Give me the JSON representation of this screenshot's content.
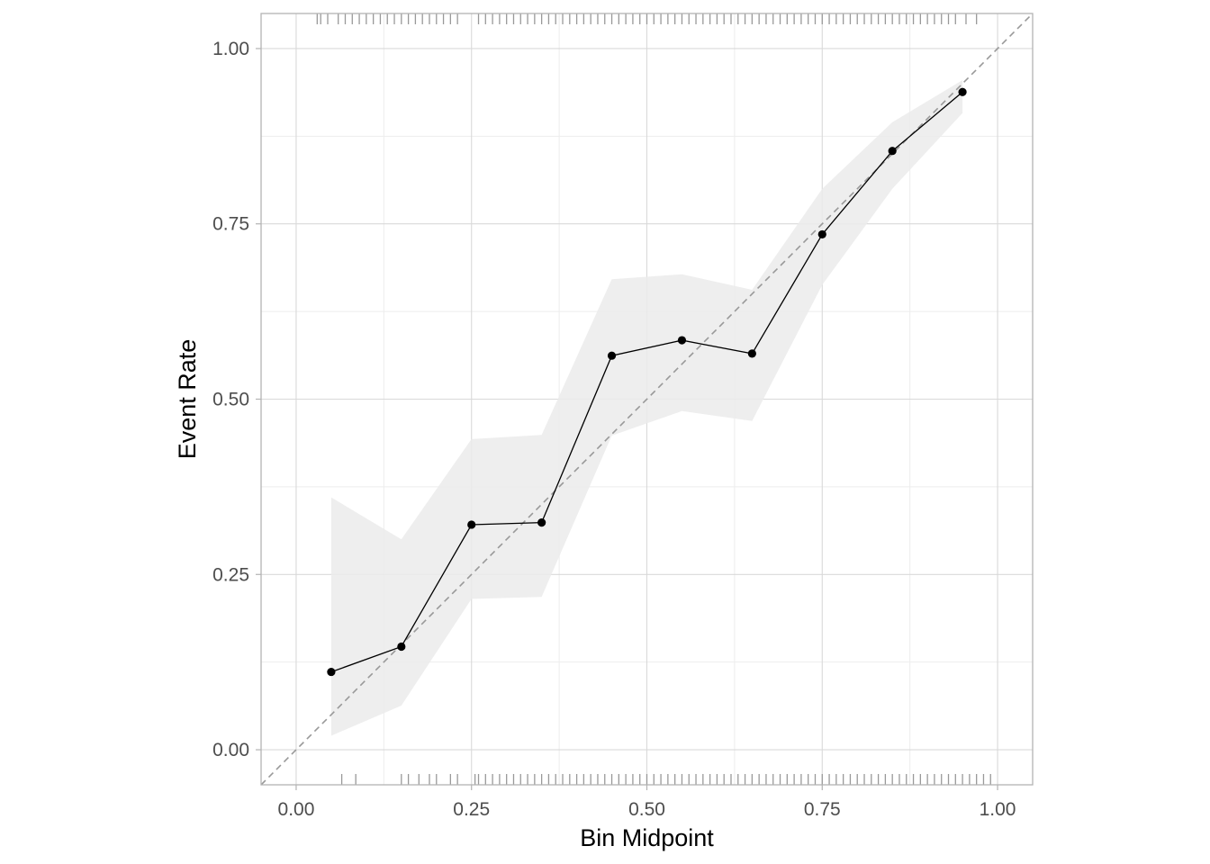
{
  "chart_data": {
    "type": "line",
    "title": "",
    "xlabel": "Bin Midpoint",
    "ylabel": "Event Rate",
    "xlim": [
      -0.05,
      1.05
    ],
    "ylim": [
      -0.05,
      1.05
    ],
    "x_ticks": [
      0,
      0.25,
      0.5,
      0.75,
      1
    ],
    "x_tick_labels": [
      "0.00",
      "0.25",
      "0.50",
      "0.75",
      "1.00"
    ],
    "y_ticks": [
      0,
      0.25,
      0.5,
      0.75,
      1
    ],
    "y_tick_labels": [
      "0.00",
      "0.25",
      "0.50",
      "0.75",
      "1.00"
    ],
    "grid": true,
    "legend": "none",
    "reference_line": {
      "x": [
        -0.05,
        1.05
      ],
      "y": [
        -0.05,
        1.05
      ],
      "style": "dashed",
      "color": "#999999"
    },
    "series": [
      {
        "x": [
          0.05,
          0.15,
          0.25,
          0.35,
          0.45,
          0.55,
          0.65,
          0.75,
          0.85,
          0.95
        ],
        "values": [
          0.111,
          0.147,
          0.321,
          0.324,
          0.562,
          0.584,
          0.565,
          0.735,
          0.854,
          0.938
        ],
        "lower": [
          0.02,
          0.063,
          0.215,
          0.218,
          0.448,
          0.483,
          0.469,
          0.663,
          0.8,
          0.908
        ],
        "upper": [
          0.36,
          0.3,
          0.443,
          0.449,
          0.671,
          0.678,
          0.656,
          0.8,
          0.895,
          0.955
        ]
      }
    ],
    "rug_top": [
      0.03,
      0.035,
      0.045,
      0.06,
      0.07,
      0.08,
      0.09,
      0.1,
      0.11,
      0.12,
      0.13,
      0.14,
      0.15,
      0.16,
      0.17,
      0.18,
      0.19,
      0.2,
      0.21,
      0.22,
      0.23,
      0.26,
      0.27,
      0.28,
      0.29,
      0.3,
      0.31,
      0.32,
      0.33,
      0.34,
      0.35,
      0.36,
      0.37,
      0.38,
      0.39,
      0.4,
      0.41,
      0.42,
      0.43,
      0.44,
      0.45,
      0.46,
      0.47,
      0.48,
      0.49,
      0.5,
      0.51,
      0.52,
      0.53,
      0.54,
      0.55,
      0.56,
      0.57,
      0.58,
      0.59,
      0.6,
      0.61,
      0.62,
      0.63,
      0.64,
      0.65,
      0.66,
      0.67,
      0.68,
      0.69,
      0.7,
      0.71,
      0.72,
      0.73,
      0.74,
      0.75,
      0.76,
      0.77,
      0.78,
      0.79,
      0.8,
      0.81,
      0.82,
      0.83,
      0.84,
      0.85,
      0.86,
      0.87,
      0.88,
      0.89,
      0.9,
      0.91,
      0.92,
      0.93,
      0.94,
      0.955,
      0.97
    ],
    "rug_bottom": [
      0.065,
      0.085,
      0.15,
      0.16,
      0.175,
      0.19,
      0.2,
      0.22,
      0.23,
      0.255,
      0.26,
      0.27,
      0.28,
      0.29,
      0.3,
      0.31,
      0.32,
      0.33,
      0.34,
      0.35,
      0.36,
      0.37,
      0.38,
      0.39,
      0.4,
      0.41,
      0.42,
      0.43,
      0.44,
      0.45,
      0.46,
      0.47,
      0.48,
      0.49,
      0.5,
      0.51,
      0.52,
      0.53,
      0.54,
      0.55,
      0.56,
      0.57,
      0.58,
      0.59,
      0.6,
      0.61,
      0.62,
      0.63,
      0.64,
      0.65,
      0.66,
      0.67,
      0.68,
      0.69,
      0.7,
      0.71,
      0.72,
      0.73,
      0.74,
      0.75,
      0.76,
      0.77,
      0.78,
      0.79,
      0.8,
      0.81,
      0.82,
      0.83,
      0.84,
      0.85,
      0.86,
      0.87,
      0.88,
      0.89,
      0.9,
      0.91,
      0.92,
      0.93,
      0.94,
      0.95,
      0.96,
      0.97,
      0.98,
      0.99
    ],
    "colors": {
      "line": "#000000",
      "point": "#000000",
      "ribbon": "#ebebeb",
      "grid": "#d9d9d9",
      "grid_minor": "#ededed",
      "panel_border": "#b3b3b3",
      "rug": "#999999",
      "reference": "#999999",
      "tick_text": "#4d4d4d"
    }
  }
}
